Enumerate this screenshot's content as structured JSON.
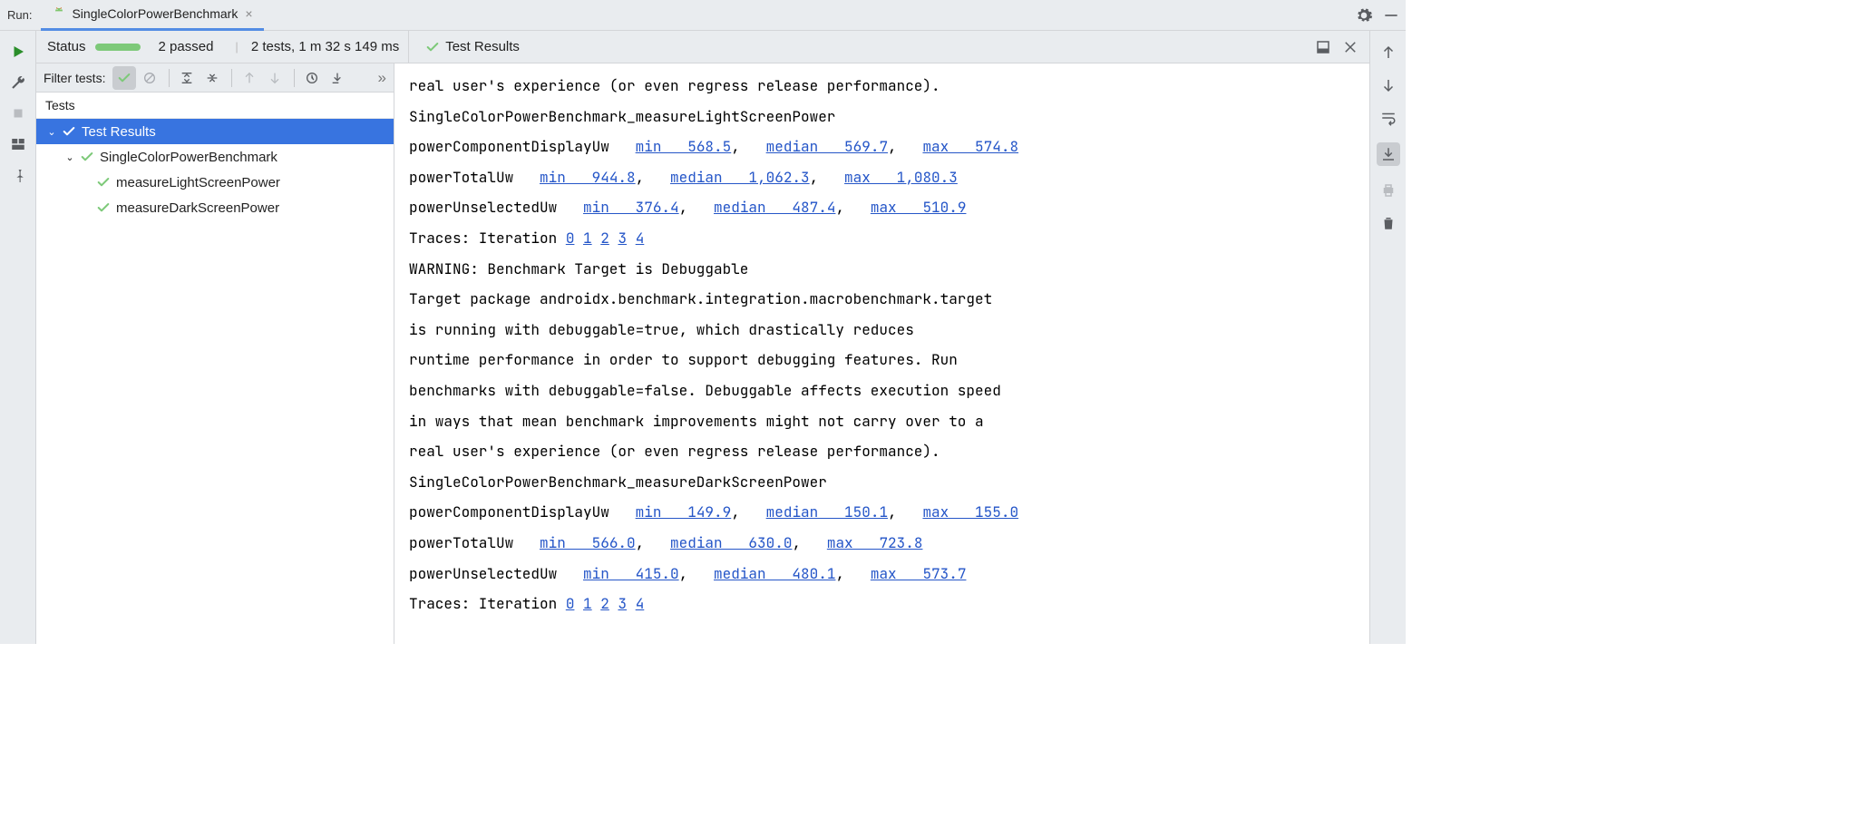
{
  "colors": {
    "panel_bg": "#e9ecef",
    "selection": "#3874e0",
    "link": "#2556c8",
    "pass_green": "#7dc979",
    "text": "#222222",
    "tab_underline": "#538ce4"
  },
  "top": {
    "run_label": "Run:",
    "tab_name": "SingleColorPowerBenchmark"
  },
  "status": {
    "label": "Status",
    "passed_text": "2 passed",
    "tests_time_text": "2 tests, 1 m 32 s 149 ms",
    "results_title": "Test Results"
  },
  "filter": {
    "label": "Filter tests:"
  },
  "tree": {
    "header": "Tests",
    "root": "Test Results",
    "suite": "SingleColorPowerBenchmark",
    "tests": [
      "measureLightScreenPower",
      "measureDarkScreenPower"
    ]
  },
  "console": {
    "intro_line": "real user's experience (or even regress release performance).",
    "sections": [
      {
        "title": "SingleColorPowerBenchmark_measureLightScreenPower",
        "metrics": [
          {
            "name": "powerComponentDisplayUw",
            "min": "568.5",
            "median": "569.7",
            "max": "574.8"
          },
          {
            "name": "powerTotalUw",
            "min": "944.8",
            "median": "1,062.3",
            "max": "1,080.3"
          },
          {
            "name": "powerUnselectedUw",
            "min": "376.4",
            "median": "487.4",
            "max": "510.9"
          }
        ],
        "traces_label": "Traces: Iteration",
        "traces": [
          "0",
          "1",
          "2",
          "3",
          "4"
        ]
      }
    ],
    "warning_title": "WARNING: Benchmark Target is Debuggable",
    "warning_body": [
      "Target package androidx.benchmark.integration.macrobenchmark.target",
      "is running with debuggable=true, which drastically reduces",
      "runtime performance in order to support debugging features. Run",
      "benchmarks with debuggable=false. Debuggable affects execution speed",
      "in ways that mean benchmark improvements might not carry over to a",
      "real user's experience (or even regress release performance)."
    ],
    "section2": {
      "title": "SingleColorPowerBenchmark_measureDarkScreenPower",
      "metrics": [
        {
          "name": "powerComponentDisplayUw",
          "min": "149.9",
          "median": "150.1",
          "max": "155.0"
        },
        {
          "name": "powerTotalUw",
          "min": "566.0",
          "median": "630.0",
          "max": "723.8"
        },
        {
          "name": "powerUnselectedUw",
          "min": "415.0",
          "median": "480.1",
          "max": "573.7"
        }
      ],
      "traces_label": "Traces: Iteration",
      "traces": [
        "0",
        "1",
        "2",
        "3",
        "4"
      ]
    }
  }
}
